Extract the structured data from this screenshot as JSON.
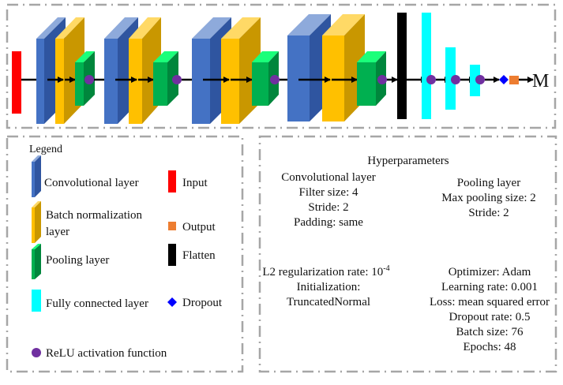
{
  "colors": {
    "input": "#ff0000",
    "conv_front": "#4472c4",
    "conv_side": "#2f55a0",
    "conv_top": "#8eaadb",
    "bn_front": "#ffc000",
    "bn_side": "#c99700",
    "bn_top": "#ffd966",
    "pool_front": "#00b050",
    "pool_side": "#00863c",
    "pool_top": "#1aff7a",
    "flatten": "#000000",
    "fully_connected": "#00ffff",
    "relu": "#7030a0",
    "dropout": "#0000ff",
    "output": "#ed7d31",
    "frame": "#a6a6a6"
  },
  "architecture": {
    "output_label": "M"
  },
  "legend": {
    "title": "Legend",
    "items": {
      "conv": "Convolutional layer",
      "bn_line1": "Batch normalization",
      "bn_line2": "layer",
      "pool": "Pooling layer",
      "fc": "Fully connected layer",
      "relu": "ReLU activation function",
      "input": "Input",
      "output": "Output",
      "flatten": "Flatten",
      "dropout": "Dropout"
    }
  },
  "hyperparameters": {
    "title": "Hyperparameters",
    "conv": [
      "Convolutional layer",
      "Filter size: 4",
      "Stride: 2",
      "Padding: same"
    ],
    "pool": [
      "Pooling layer",
      "Max pooling size: 2",
      "Stride: 2"
    ],
    "l2_label": "L2 regularization rate: 10",
    "l2_exponent": "-4",
    "init": [
      "Initialization:",
      "TruncatedNormal"
    ],
    "training": [
      "Optimizer: Adam",
      "Learning rate: 0.001",
      "Loss: mean squared error",
      "Dropout rate: 0.5",
      "Batch size: 76",
      "Epochs: 48"
    ]
  }
}
